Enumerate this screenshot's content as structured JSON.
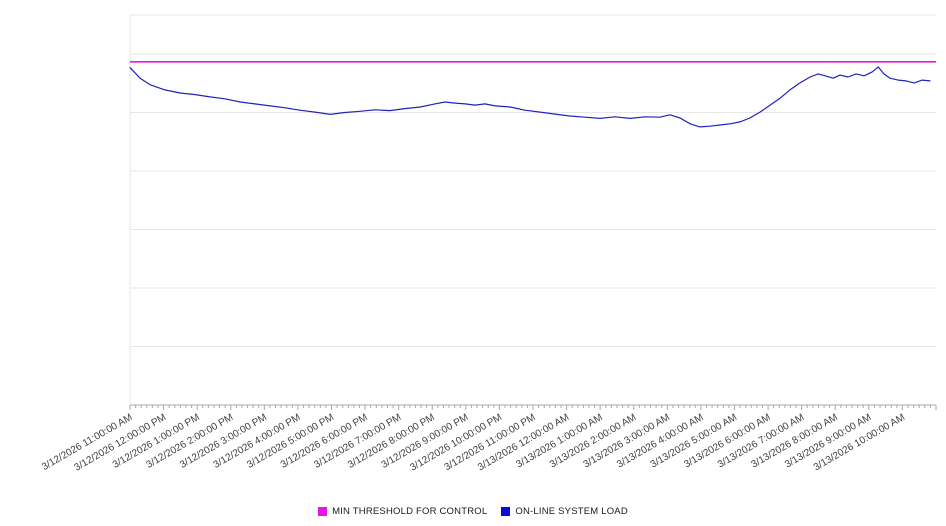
{
  "page": {
    "background": "#ffffff"
  },
  "legend": {
    "items": [
      {
        "label": "MIN THRESHOLD FOR CONTROL",
        "color": "#e616e6"
      },
      {
        "label": "ON-LINE SYSTEM LOAD",
        "color": "#0b0bdf"
      }
    ]
  },
  "chart_data": {
    "type": "line",
    "title": "",
    "xlabel": "",
    "ylabel": "",
    "grid": true,
    "legend_position": "bottom",
    "ylim": [
      0,
      100
    ],
    "y_grid_ticks": [
      0,
      15,
      30,
      45,
      60,
      75,
      90
    ],
    "x_axis": {
      "hours_span": 24,
      "minor_ticks_per_hour": 6,
      "tick_labels": [
        "3/12/2026 11:00:00 AM",
        "3/12/2026 12:00:00 PM",
        "3/12/2026 1:00:00 PM",
        "3/12/2026 2:00:00 PM",
        "3/12/2026 3:00:00 PM",
        "3/12/2026 4:00:00 PM",
        "3/12/2026 5:00:00 PM",
        "3/12/2026 6:00:00 PM",
        "3/12/2026 7:00:00 PM",
        "3/12/2026 8:00:00 PM",
        "3/12/2026 9:00:00 PM",
        "3/12/2026 10:00:00 PM",
        "3/12/2026 11:00:00 PM",
        "3/13/2026 12:00:00 AM",
        "3/13/2026 1:00:00 AM",
        "3/13/2026 2:00:00 AM",
        "3/13/2026 3:00:00 AM",
        "3/13/2026 4:00:00 AM",
        "3/13/2026 5:00:00 AM",
        "3/13/2026 6:00:00 AM",
        "3/13/2026 7:00:00 AM",
        "3/13/2026 8:00:00 AM",
        "3/13/2026 9:00:00 AM",
        "3/13/2026 10:00:00 AM"
      ]
    },
    "series": [
      {
        "name": "MIN THRESHOLD FOR CONTROL",
        "kind": "threshold",
        "color": "#e616e6",
        "value": 88
      },
      {
        "name": "ON-LINE SYSTEM LOAD",
        "kind": "line",
        "color": "#2222bb",
        "points": [
          [
            0,
            86.5
          ],
          [
            0.3,
            83.8
          ],
          [
            0.6,
            82.1
          ],
          [
            1.04,
            80.8
          ],
          [
            1.49,
            80.0
          ],
          [
            1.94,
            79.6
          ],
          [
            2.38,
            79.0
          ],
          [
            2.83,
            78.5
          ],
          [
            3.28,
            77.7
          ],
          [
            3.72,
            77.2
          ],
          [
            4.17,
            76.7
          ],
          [
            4.62,
            76.2
          ],
          [
            5.06,
            75.6
          ],
          [
            5.51,
            75.1
          ],
          [
            5.96,
            74.5
          ],
          [
            6.4,
            75.0
          ],
          [
            6.85,
            75.3
          ],
          [
            7.3,
            75.7
          ],
          [
            7.74,
            75.5
          ],
          [
            8.19,
            76.0
          ],
          [
            8.64,
            76.4
          ],
          [
            9.08,
            77.2
          ],
          [
            9.38,
            77.7
          ],
          [
            9.68,
            77.4
          ],
          [
            9.98,
            77.2
          ],
          [
            10.27,
            76.9
          ],
          [
            10.57,
            77.2
          ],
          [
            10.87,
            76.7
          ],
          [
            11.32,
            76.4
          ],
          [
            11.76,
            75.6
          ],
          [
            12.21,
            75.1
          ],
          [
            12.66,
            74.6
          ],
          [
            13.1,
            74.1
          ],
          [
            13.55,
            73.8
          ],
          [
            14,
            73.5
          ],
          [
            14.44,
            73.9
          ],
          [
            14.89,
            73.5
          ],
          [
            15.34,
            73.9
          ],
          [
            15.78,
            73.8
          ],
          [
            16.08,
            74.4
          ],
          [
            16.38,
            73.6
          ],
          [
            16.68,
            72.1
          ],
          [
            16.97,
            71.3
          ],
          [
            17.27,
            71.5
          ],
          [
            17.57,
            71.8
          ],
          [
            17.87,
            72.1
          ],
          [
            18.16,
            72.6
          ],
          [
            18.46,
            73.6
          ],
          [
            18.76,
            75.1
          ],
          [
            19.06,
            76.9
          ],
          [
            19.36,
            78.7
          ],
          [
            19.65,
            80.8
          ],
          [
            19.95,
            82.6
          ],
          [
            20.25,
            84.1
          ],
          [
            20.49,
            84.9
          ],
          [
            20.7,
            84.4
          ],
          [
            20.94,
            83.8
          ],
          [
            21.14,
            84.6
          ],
          [
            21.38,
            84.1
          ],
          [
            21.62,
            84.9
          ],
          [
            21.86,
            84.4
          ],
          [
            22.1,
            85.4
          ],
          [
            22.28,
            86.7
          ],
          [
            22.45,
            84.9
          ],
          [
            22.63,
            83.8
          ],
          [
            22.87,
            83.3
          ],
          [
            23.11,
            83.1
          ],
          [
            23.35,
            82.6
          ],
          [
            23.59,
            83.3
          ],
          [
            23.82,
            83.1
          ]
        ]
      }
    ]
  }
}
